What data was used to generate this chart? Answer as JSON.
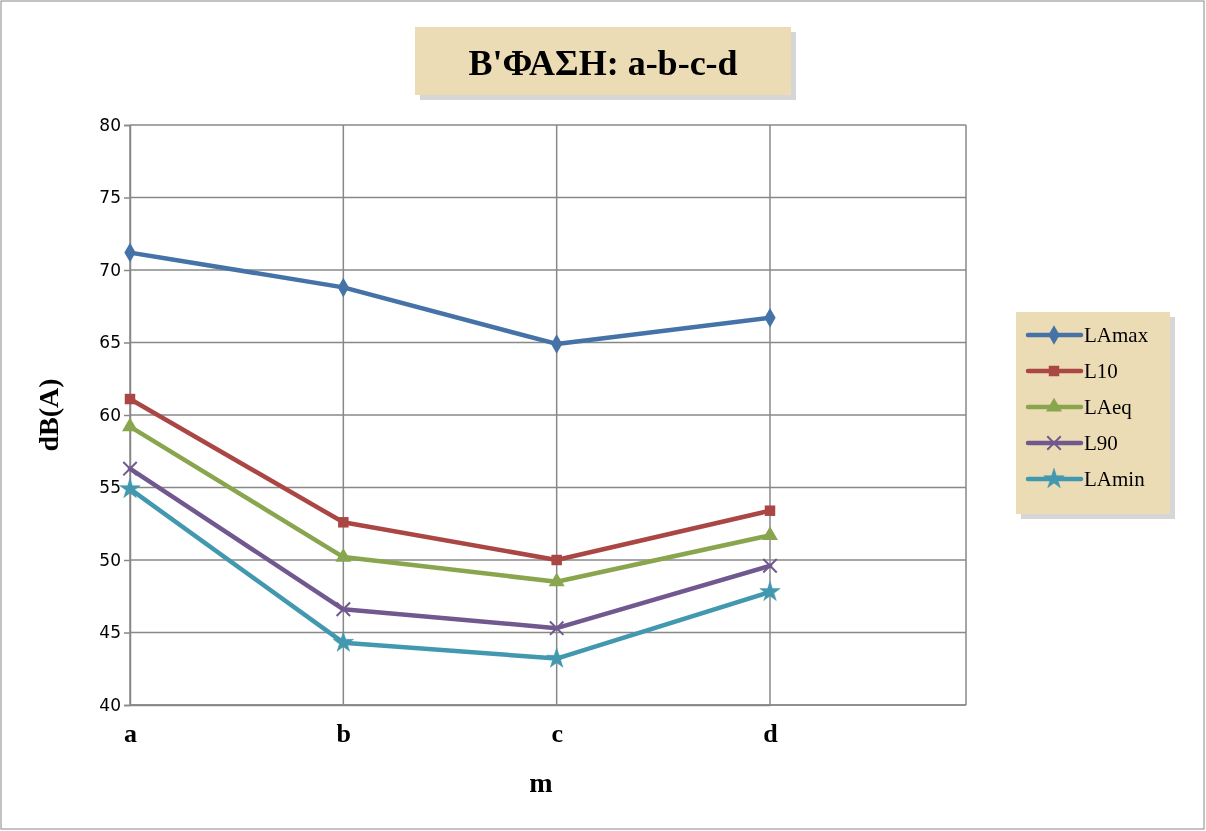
{
  "chart_data": {
    "type": "line",
    "title": "B'ΦΑΣΗ: a-b-c-d",
    "xlabel": "m",
    "ylabel": "dB(A)",
    "categories": [
      "a",
      "b",
      "c",
      "d"
    ],
    "ylim": [
      40,
      80
    ],
    "yticks": [
      40,
      45,
      50,
      55,
      60,
      65,
      70,
      75,
      80
    ],
    "grid": true,
    "legend": "right",
    "series": [
      {
        "name": "LAmax",
        "color": "#4572a7",
        "marker": "diamond",
        "values": [
          71.2,
          68.8,
          64.9,
          66.7
        ]
      },
      {
        "name": "L10",
        "color": "#aa4643",
        "marker": "square",
        "values": [
          61.1,
          52.6,
          50.0,
          53.4
        ]
      },
      {
        "name": "LAeq",
        "color": "#89a54e",
        "marker": "triangle",
        "values": [
          59.2,
          50.2,
          48.5,
          51.7
        ]
      },
      {
        "name": "L90",
        "color": "#71588f",
        "marker": "cross",
        "values": [
          56.3,
          46.6,
          45.3,
          49.6
        ]
      },
      {
        "name": "LAmin",
        "color": "#4198af",
        "marker": "star",
        "values": [
          54.9,
          44.3,
          43.2,
          47.8
        ]
      }
    ]
  }
}
